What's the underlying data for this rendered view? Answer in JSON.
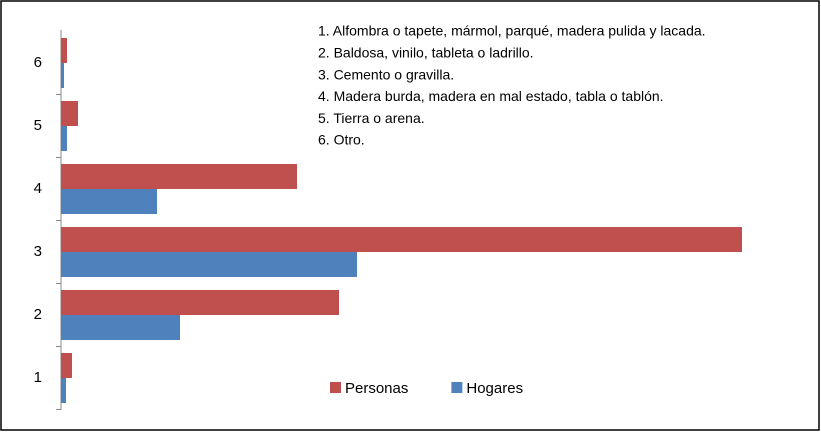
{
  "chart_data": {
    "type": "barh",
    "categories": [
      "1",
      "2",
      "3",
      "4",
      "5",
      "6"
    ],
    "series": [
      {
        "name": "Personas",
        "color": "#c0504d",
        "values": [
          11,
          278,
          681,
          236,
          17,
          6
        ]
      },
      {
        "name": "Hogares",
        "color": "#4f81bd",
        "values": [
          5,
          119,
          296,
          96,
          6,
          3
        ]
      }
    ],
    "annotations": [
      "1. Alfombra o tapete, mármol, parqué, madera pulida y lacada.",
      "2. Baldosa, vinilo, tableta o ladrillo.",
      "3. Cemento o gravilla.",
      "4. Madera burda, madera en mal estado, tabla o tablón.",
      "5. Tierra o arena.",
      "6. Otro."
    ],
    "legend": "bottom"
  }
}
